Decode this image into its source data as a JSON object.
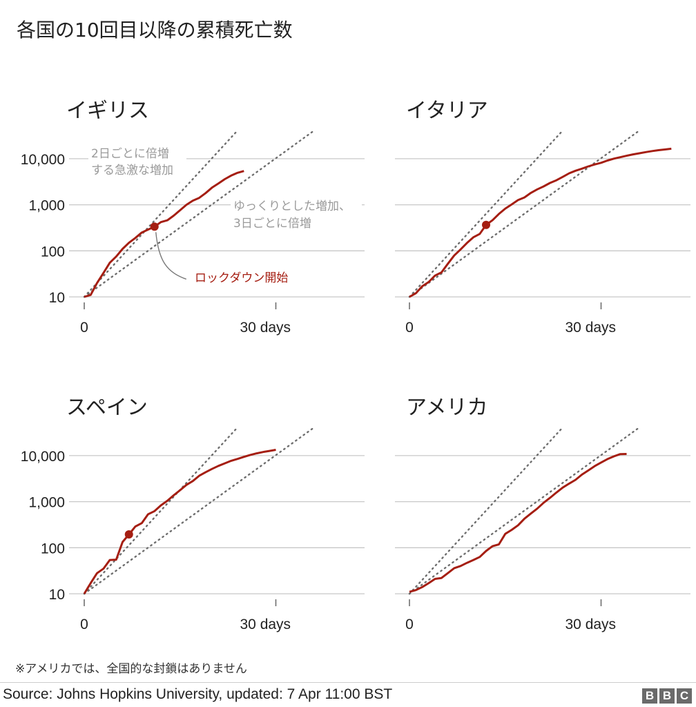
{
  "title": "各国の10回目以降の累積死亡数",
  "footnote": "※アメリカでは、全国的な封鎖はありません",
  "source": "Source: Johns Hopkins University, updated:  7 Apr 11:00 BST",
  "logo_letters": [
    "B",
    "B",
    "C"
  ],
  "colors": {
    "series": "#a51e12",
    "reference": "#6e6e6e",
    "grid": "#c8c8c8"
  },
  "annotations": {
    "doubling_2day": [
      "2日ごとに倍増",
      "する急激な増加"
    ],
    "doubling_3day": [
      "ゆっくりとした増加、",
      "3日ごとに倍増"
    ],
    "lockdown": "ロックダウン開始"
  },
  "chart_data": [
    {
      "type": "line",
      "title": "イギリス",
      "yscale": "log",
      "ylim": [
        10,
        40000
      ],
      "xlim": [
        0,
        44
      ],
      "y_ticks": [
        {
          "value": 10,
          "label": "10"
        },
        {
          "value": 100,
          "label": "100"
        },
        {
          "value": 1000,
          "label": "1,000"
        },
        {
          "value": 10000,
          "label": "10,000"
        }
      ],
      "x_ticks": [
        {
          "value": 0,
          "label": "0"
        },
        {
          "value": 30,
          "label": "30 days"
        }
      ],
      "reference_lines": [
        {
          "doubling_days": 2
        },
        {
          "doubling_days": 3
        }
      ],
      "series": [
        {
          "x": [
            0,
            1,
            2,
            3,
            4,
            5,
            6,
            7,
            8,
            9,
            10,
            11,
            12,
            13,
            14,
            15,
            16,
            17,
            18,
            19,
            20,
            21,
            22,
            23,
            24,
            25
          ],
          "values": [
            10,
            11,
            20,
            33,
            55,
            75,
            110,
            150,
            190,
            250,
            290,
            335,
            420,
            460,
            580,
            760,
            1000,
            1230,
            1410,
            1790,
            2350,
            2900,
            3600,
            4300,
            4950,
            5400
          ]
        }
      ],
      "lockdown": {
        "x": 11,
        "y": 335
      }
    },
    {
      "type": "line",
      "title": "イタリア",
      "yscale": "log",
      "ylim": [
        10,
        40000
      ],
      "xlim": [
        0,
        44
      ],
      "y_ticks": [
        {
          "value": 10,
          "label": ""
        },
        {
          "value": 100,
          "label": ""
        },
        {
          "value": 1000,
          "label": ""
        },
        {
          "value": 10000,
          "label": ""
        }
      ],
      "x_ticks": [
        {
          "value": 0,
          "label": "0"
        },
        {
          "value": 30,
          "label": "30 days"
        }
      ],
      "reference_lines": [
        {
          "doubling_days": 2
        },
        {
          "doubling_days": 3
        }
      ],
      "series": [
        {
          "x": [
            0,
            1,
            2,
            3,
            4,
            5,
            6,
            7,
            8,
            9,
            10,
            11,
            12,
            13,
            14,
            15,
            16,
            17,
            18,
            19,
            20,
            21,
            22,
            23,
            24,
            25,
            26,
            27,
            28,
            29,
            30,
            31,
            32,
            33,
            34,
            35,
            36,
            37,
            38,
            39,
            40,
            41
          ],
          "values": [
            10,
            12,
            17,
            21,
            29,
            34,
            52,
            79,
            107,
            148,
            197,
            233,
            366,
            463,
            631,
            827,
            1016,
            1266,
            1441,
            1809,
            2158,
            2503,
            2978,
            3405,
            4032,
            4825,
            5476,
            6077,
            6820,
            7503,
            8165,
            9134,
            10023,
            10779,
            11591,
            12428,
            13155,
            13915,
            14681,
            15362,
            15887,
            16523
          ]
        }
      ],
      "lockdown": {
        "x": 12,
        "y": 366
      }
    },
    {
      "type": "line",
      "title": "スペイン",
      "yscale": "log",
      "ylim": [
        10,
        40000
      ],
      "xlim": [
        0,
        44
      ],
      "y_ticks": [
        {
          "value": 10,
          "label": "10"
        },
        {
          "value": 100,
          "label": "100"
        },
        {
          "value": 1000,
          "label": "1,000"
        },
        {
          "value": 10000,
          "label": "10,000"
        }
      ],
      "x_ticks": [
        {
          "value": 0,
          "label": "0"
        },
        {
          "value": 30,
          "label": "30 days"
        }
      ],
      "reference_lines": [
        {
          "doubling_days": 2
        },
        {
          "doubling_days": 3
        }
      ],
      "series": [
        {
          "x": [
            0,
            1,
            2,
            3,
            4,
            5,
            6,
            7,
            8,
            9,
            10,
            11,
            12,
            13,
            14,
            15,
            16,
            17,
            18,
            19,
            20,
            21,
            22,
            23,
            24,
            25,
            26,
            27,
            28,
            29,
            30
          ],
          "values": [
            10,
            17,
            28,
            35,
            54,
            55,
            133,
            195,
            289,
            342,
            533,
            623,
            830,
            1043,
            1375,
            1772,
            2311,
            2808,
            3647,
            4365,
            5138,
            5982,
            6803,
            7716,
            8464,
            9387,
            10348,
            11198,
            11947,
            12641,
            13341
          ]
        }
      ],
      "lockdown": {
        "x": 7,
        "y": 195
      }
    },
    {
      "type": "line",
      "title": "アメリカ",
      "yscale": "log",
      "ylim": [
        10,
        40000
      ],
      "xlim": [
        0,
        44
      ],
      "y_ticks": [
        {
          "value": 10,
          "label": ""
        },
        {
          "value": 100,
          "label": ""
        },
        {
          "value": 1000,
          "label": ""
        },
        {
          "value": 10000,
          "label": ""
        }
      ],
      "x_ticks": [
        {
          "value": 0,
          "label": "0"
        },
        {
          "value": 30,
          "label": "30 days"
        }
      ],
      "reference_lines": [
        {
          "doubling_days": 2
        },
        {
          "doubling_days": 3
        }
      ],
      "series": [
        {
          "x": [
            0,
            1,
            2,
            3,
            4,
            5,
            6,
            7,
            8,
            9,
            10,
            11,
            12,
            13,
            14,
            15,
            16,
            17,
            18,
            19,
            20,
            21,
            22,
            23,
            24,
            25,
            26,
            27,
            28,
            29,
            30,
            31,
            32,
            33,
            34
          ],
          "values": [
            11,
            12,
            14,
            17,
            21,
            22,
            28,
            36,
            40,
            47,
            54,
            63,
            85,
            108,
            118,
            200,
            244,
            307,
            427,
            552,
            706,
            946,
            1208,
            1578,
            2023,
            2467,
            2978,
            3873,
            4757,
            5926,
            7087,
            8407,
            9619,
            10783,
            10871
          ]
        }
      ],
      "lockdown": null
    }
  ]
}
